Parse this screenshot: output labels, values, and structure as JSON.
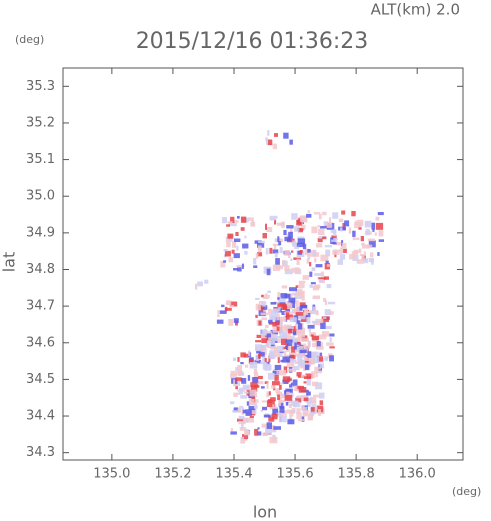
{
  "chart_data": {
    "type": "map",
    "title": "2015/12/16 01:36:23",
    "subtitle": "ALT(km) 2.0",
    "x_label": "lon",
    "y_label": "lat",
    "x_unit": "(deg)",
    "y_unit": "(deg)",
    "xlim": [
      134.84,
      136.15
    ],
    "ylim": [
      34.28,
      35.35
    ],
    "xticks": [
      {
        "value": 135,
        "label": "135.0"
      },
      135.2,
      135.4,
      135.6,
      135.8,
      {
        "value": 136,
        "label": "136.0"
      }
    ],
    "yticks": [
      34.3,
      34.4,
      34.5,
      34.6,
      34.7,
      34.8,
      34.9,
      {
        "value": 35,
        "label": "35.0"
      },
      35.1,
      35.2,
      35.3
    ],
    "colors": [
      "#e8434b",
      "#5a5ae6",
      "#f2c8cc",
      "#cfcff2"
    ]
  }
}
